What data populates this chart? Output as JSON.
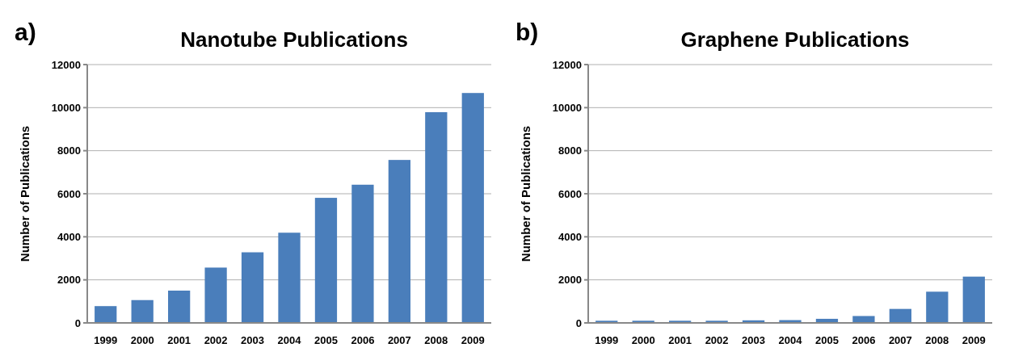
{
  "chart_data": [
    {
      "type": "bar",
      "title": "Nanotube Publications",
      "ylabel": "Number of Publications",
      "annotations": [
        "a)"
      ],
      "categories": [
        "1999",
        "2000",
        "2001",
        "2002",
        "2003",
        "2004",
        "2005",
        "2006",
        "2007",
        "2008",
        "2009"
      ],
      "values": [
        780,
        1060,
        1500,
        2570,
        3280,
        4190,
        5810,
        6420,
        7570,
        9790,
        10680
      ],
      "color": "#4a7ebb",
      "ylim": [
        0,
        12000
      ],
      "yticks": [
        0,
        2000,
        4000,
        6000,
        8000,
        10000,
        12000
      ],
      "grid": "y"
    },
    {
      "type": "bar",
      "title": "Graphene Publications",
      "ylabel": "Number of Publications",
      "annotations": [
        "b)"
      ],
      "categories": [
        "1999",
        "2000",
        "2001",
        "2002",
        "2003",
        "2004",
        "2005",
        "2006",
        "2007",
        "2008",
        "2009"
      ],
      "values": [
        100,
        100,
        100,
        100,
        120,
        130,
        190,
        320,
        650,
        1450,
        2150
      ],
      "color": "#4a7ebb",
      "ylim": [
        0,
        12000
      ],
      "yticks": [
        0,
        2000,
        4000,
        6000,
        8000,
        10000,
        12000
      ],
      "grid": "y"
    }
  ]
}
